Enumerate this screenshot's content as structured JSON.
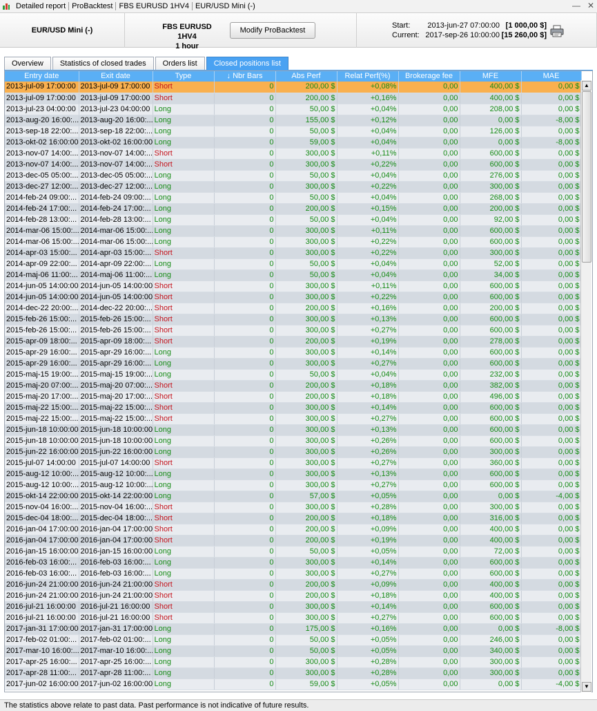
{
  "titlebar": {
    "crumbs": [
      "Detailed report",
      "ProBacktest",
      "FBS EURUSD 1HV4",
      "EUR/USD Mini (-)"
    ]
  },
  "header": {
    "instrument": "EUR/USD Mini (-)",
    "strategy_name": "FBS EURUSD 1HV4",
    "strategy_period": "1 hour",
    "modify_button": "Modify ProBacktest",
    "start_label": "Start:",
    "start_date": "2013-jun-27 07:00:00",
    "start_amount": "[1 000,00 $]",
    "current_label": "Current:",
    "current_date": "2017-sep-26 10:00:00",
    "current_amount": "[15 260,00 $]"
  },
  "tabs": [
    {
      "label": "Overview",
      "active": false
    },
    {
      "label": "Statistics of closed trades",
      "active": false
    },
    {
      "label": "Orders list",
      "active": false
    },
    {
      "label": "Closed positions list",
      "active": true
    }
  ],
  "columns": [
    "Entry date",
    "Exit date",
    "Type",
    "Nbr Bars",
    "Abs Perf",
    "Relat Perf(%)",
    "Brokerage fee",
    "MFE",
    "MAE"
  ],
  "sort_indicator": "↓",
  "rows": [
    [
      "2013-jul-09 17:00:00",
      "2013-jul-09 17:00:00",
      "Short",
      "0",
      "200,00 $",
      "+0,08%",
      "0,00",
      "400,00 $",
      "0,00 $"
    ],
    [
      "2013-jul-09 17:00:00",
      "2013-jul-09 17:00:00",
      "Short",
      "0",
      "200,00 $",
      "+0,16%",
      "0,00",
      "400,00 $",
      "0,00 $"
    ],
    [
      "2013-jul-23 04:00:00",
      "2013-jul-23 04:00:00",
      "Long",
      "0",
      "50,00 $",
      "+0,04%",
      "0,00",
      "208,00 $",
      "0,00 $"
    ],
    [
      "2013-aug-20 16:00:...",
      "2013-aug-20 16:00:...",
      "Long",
      "0",
      "155,00 $",
      "+0,12%",
      "0,00",
      "0,00 $",
      "-8,00 $"
    ],
    [
      "2013-sep-18 22:00:...",
      "2013-sep-18 22:00:...",
      "Long",
      "0",
      "50,00 $",
      "+0,04%",
      "0,00",
      "126,00 $",
      "0,00 $"
    ],
    [
      "2013-okt-02 16:00:00",
      "2013-okt-02 16:00:00",
      "Long",
      "0",
      "59,00 $",
      "+0,04%",
      "0,00",
      "0,00 $",
      "-8,00 $"
    ],
    [
      "2013-nov-07 14:00:...",
      "2013-nov-07 14:00:...",
      "Short",
      "0",
      "300,00 $",
      "+0,11%",
      "0,00",
      "600,00 $",
      "0,00 $"
    ],
    [
      "2013-nov-07 14:00:...",
      "2013-nov-07 14:00:...",
      "Short",
      "0",
      "300,00 $",
      "+0,22%",
      "0,00",
      "600,00 $",
      "0,00 $"
    ],
    [
      "2013-dec-05 05:00:...",
      "2013-dec-05 05:00:...",
      "Long",
      "0",
      "50,00 $",
      "+0,04%",
      "0,00",
      "276,00 $",
      "0,00 $"
    ],
    [
      "2013-dec-27 12:00:...",
      "2013-dec-27 12:00:...",
      "Long",
      "0",
      "300,00 $",
      "+0,22%",
      "0,00",
      "300,00 $",
      "0,00 $"
    ],
    [
      "2014-feb-24 09:00:...",
      "2014-feb-24 09:00:...",
      "Long",
      "0",
      "50,00 $",
      "+0,04%",
      "0,00",
      "268,00 $",
      "0,00 $"
    ],
    [
      "2014-feb-24 17:00:...",
      "2014-feb-24 17:00:...",
      "Long",
      "0",
      "200,00 $",
      "+0,15%",
      "0,00",
      "200,00 $",
      "0,00 $"
    ],
    [
      "2014-feb-28 13:00:...",
      "2014-feb-28 13:00:...",
      "Long",
      "0",
      "50,00 $",
      "+0,04%",
      "0,00",
      "92,00 $",
      "0,00 $"
    ],
    [
      "2014-mar-06 15:00:...",
      "2014-mar-06 15:00:...",
      "Long",
      "0",
      "300,00 $",
      "+0,11%",
      "0,00",
      "600,00 $",
      "0,00 $"
    ],
    [
      "2014-mar-06 15:00:...",
      "2014-mar-06 15:00:...",
      "Long",
      "0",
      "300,00 $",
      "+0,22%",
      "0,00",
      "600,00 $",
      "0,00 $"
    ],
    [
      "2014-apr-03 15:00:...",
      "2014-apr-03 15:00:...",
      "Short",
      "0",
      "300,00 $",
      "+0,22%",
      "0,00",
      "300,00 $",
      "0,00 $"
    ],
    [
      "2014-apr-09 22:00:...",
      "2014-apr-09 22:00:...",
      "Long",
      "0",
      "50,00 $",
      "+0,04%",
      "0,00",
      "52,00 $",
      "0,00 $"
    ],
    [
      "2014-maj-06 11:00:...",
      "2014-maj-06 11:00:...",
      "Long",
      "0",
      "50,00 $",
      "+0,04%",
      "0,00",
      "34,00 $",
      "0,00 $"
    ],
    [
      "2014-jun-05 14:00:00",
      "2014-jun-05 14:00:00",
      "Short",
      "0",
      "300,00 $",
      "+0,11%",
      "0,00",
      "600,00 $",
      "0,00 $"
    ],
    [
      "2014-jun-05 14:00:00",
      "2014-jun-05 14:00:00",
      "Short",
      "0",
      "300,00 $",
      "+0,22%",
      "0,00",
      "600,00 $",
      "0,00 $"
    ],
    [
      "2014-dec-22 20:00:...",
      "2014-dec-22 20:00:...",
      "Short",
      "0",
      "200,00 $",
      "+0,16%",
      "0,00",
      "200,00 $",
      "0,00 $"
    ],
    [
      "2015-feb-26 15:00:...",
      "2015-feb-26 15:00:...",
      "Short",
      "0",
      "300,00 $",
      "+0,13%",
      "0,00",
      "600,00 $",
      "0,00 $"
    ],
    [
      "2015-feb-26 15:00:...",
      "2015-feb-26 15:00:...",
      "Short",
      "0",
      "300,00 $",
      "+0,27%",
      "0,00",
      "600,00 $",
      "0,00 $"
    ],
    [
      "2015-apr-09 18:00:...",
      "2015-apr-09 18:00:...",
      "Short",
      "0",
      "200,00 $",
      "+0,19%",
      "0,00",
      "278,00 $",
      "0,00 $"
    ],
    [
      "2015-apr-29 16:00:...",
      "2015-apr-29 16:00:...",
      "Long",
      "0",
      "300,00 $",
      "+0,14%",
      "0,00",
      "600,00 $",
      "0,00 $"
    ],
    [
      "2015-apr-29 16:00:...",
      "2015-apr-29 16:00:...",
      "Long",
      "0",
      "300,00 $",
      "+0,27%",
      "0,00",
      "600,00 $",
      "0,00 $"
    ],
    [
      "2015-maj-15 19:00:...",
      "2015-maj-15 19:00:...",
      "Long",
      "0",
      "50,00 $",
      "+0,04%",
      "0,00",
      "232,00 $",
      "0,00 $"
    ],
    [
      "2015-maj-20 07:00:...",
      "2015-maj-20 07:00:...",
      "Short",
      "0",
      "200,00 $",
      "+0,18%",
      "0,00",
      "382,00 $",
      "0,00 $"
    ],
    [
      "2015-maj-20 17:00:...",
      "2015-maj-20 17:00:...",
      "Short",
      "0",
      "200,00 $",
      "+0,18%",
      "0,00",
      "496,00 $",
      "0,00 $"
    ],
    [
      "2015-maj-22 15:00:...",
      "2015-maj-22 15:00:...",
      "Short",
      "0",
      "300,00 $",
      "+0,14%",
      "0,00",
      "600,00 $",
      "0,00 $"
    ],
    [
      "2015-maj-22 15:00:...",
      "2015-maj-22 15:00:...",
      "Short",
      "0",
      "300,00 $",
      "+0,27%",
      "0,00",
      "600,00 $",
      "0,00 $"
    ],
    [
      "2015-jun-18 10:00:00",
      "2015-jun-18 10:00:00",
      "Long",
      "0",
      "300,00 $",
      "+0,13%",
      "0,00",
      "600,00 $",
      "0,00 $"
    ],
    [
      "2015-jun-18 10:00:00",
      "2015-jun-18 10:00:00",
      "Long",
      "0",
      "300,00 $",
      "+0,26%",
      "0,00",
      "600,00 $",
      "0,00 $"
    ],
    [
      "2015-jun-22 16:00:00",
      "2015-jun-22 16:00:00",
      "Long",
      "0",
      "300,00 $",
      "+0,26%",
      "0,00",
      "300,00 $",
      "0,00 $"
    ],
    [
      "2015-jul-07 14:00:00",
      "2015-jul-07 14:00:00",
      "Short",
      "0",
      "300,00 $",
      "+0,27%",
      "0,00",
      "360,00 $",
      "0,00 $"
    ],
    [
      "2015-aug-12 10:00:...",
      "2015-aug-12 10:00:...",
      "Long",
      "0",
      "300,00 $",
      "+0,13%",
      "0,00",
      "600,00 $",
      "0,00 $"
    ],
    [
      "2015-aug-12 10:00:...",
      "2015-aug-12 10:00:...",
      "Long",
      "0",
      "300,00 $",
      "+0,27%",
      "0,00",
      "600,00 $",
      "0,00 $"
    ],
    [
      "2015-okt-14 22:00:00",
      "2015-okt-14 22:00:00",
      "Long",
      "0",
      "57,00 $",
      "+0,05%",
      "0,00",
      "0,00 $",
      "-4,00 $"
    ],
    [
      "2015-nov-04 16:00:...",
      "2015-nov-04 16:00:...",
      "Short",
      "0",
      "300,00 $",
      "+0,28%",
      "0,00",
      "300,00 $",
      "0,00 $"
    ],
    [
      "2015-dec-04 18:00:...",
      "2015-dec-04 18:00:...",
      "Short",
      "0",
      "200,00 $",
      "+0,18%",
      "0,00",
      "316,00 $",
      "0,00 $"
    ],
    [
      "2016-jan-04 17:00:00",
      "2016-jan-04 17:00:00",
      "Short",
      "0",
      "200,00 $",
      "+0,09%",
      "0,00",
      "400,00 $",
      "0,00 $"
    ],
    [
      "2016-jan-04 17:00:00",
      "2016-jan-04 17:00:00",
      "Short",
      "0",
      "200,00 $",
      "+0,19%",
      "0,00",
      "400,00 $",
      "0,00 $"
    ],
    [
      "2016-jan-15 16:00:00",
      "2016-jan-15 16:00:00",
      "Long",
      "0",
      "50,00 $",
      "+0,05%",
      "0,00",
      "72,00 $",
      "0,00 $"
    ],
    [
      "2016-feb-03 16:00:...",
      "2016-feb-03 16:00:...",
      "Long",
      "0",
      "300,00 $",
      "+0,14%",
      "0,00",
      "600,00 $",
      "0,00 $"
    ],
    [
      "2016-feb-03 16:00:...",
      "2016-feb-03 16:00:...",
      "Long",
      "0",
      "300,00 $",
      "+0,27%",
      "0,00",
      "600,00 $",
      "0,00 $"
    ],
    [
      "2016-jun-24 21:00:00",
      "2016-jun-24 21:00:00",
      "Short",
      "0",
      "200,00 $",
      "+0,09%",
      "0,00",
      "400,00 $",
      "0,00 $"
    ],
    [
      "2016-jun-24 21:00:00",
      "2016-jun-24 21:00:00",
      "Short",
      "0",
      "200,00 $",
      "+0,18%",
      "0,00",
      "400,00 $",
      "0,00 $"
    ],
    [
      "2016-jul-21 16:00:00",
      "2016-jul-21 16:00:00",
      "Short",
      "0",
      "300,00 $",
      "+0,14%",
      "0,00",
      "600,00 $",
      "0,00 $"
    ],
    [
      "2016-jul-21 16:00:00",
      "2016-jul-21 16:00:00",
      "Short",
      "0",
      "300,00 $",
      "+0,27%",
      "0,00",
      "600,00 $",
      "0,00 $"
    ],
    [
      "2017-jan-31 17:00:00",
      "2017-jan-31 17:00:00",
      "Long",
      "0",
      "175,00 $",
      "+0,16%",
      "0,00",
      "0,00 $",
      "-8,00 $"
    ],
    [
      "2017-feb-02 01:00:...",
      "2017-feb-02 01:00:...",
      "Long",
      "0",
      "50,00 $",
      "+0,05%",
      "0,00",
      "246,00 $",
      "0,00 $"
    ],
    [
      "2017-mar-10 16:00:...",
      "2017-mar-10 16:00:...",
      "Long",
      "0",
      "50,00 $",
      "+0,05%",
      "0,00",
      "340,00 $",
      "0,00 $"
    ],
    [
      "2017-apr-25 16:00:...",
      "2017-apr-25 16:00:...",
      "Long",
      "0",
      "300,00 $",
      "+0,28%",
      "0,00",
      "300,00 $",
      "0,00 $"
    ],
    [
      "2017-apr-28 11:00:...",
      "2017-apr-28 11:00:...",
      "Long",
      "0",
      "300,00 $",
      "+0,28%",
      "0,00",
      "300,00 $",
      "0,00 $"
    ],
    [
      "2017-jun-02 16:00:00",
      "2017-jun-02 16:00:00",
      "Long",
      "0",
      "59,00 $",
      "+0,05%",
      "0,00",
      "0,00 $",
      "-4,00 $"
    ]
  ],
  "selected_row_index": 0,
  "colors": {
    "header_bg": "#5aaff5",
    "selected_row": "#f9b04f",
    "long_text": "#168b16",
    "short_text": "#c4121b",
    "active_tab": "#4aa2f2"
  },
  "footer": "The statistics above relate to past data. Past performance is not indicative of future results."
}
